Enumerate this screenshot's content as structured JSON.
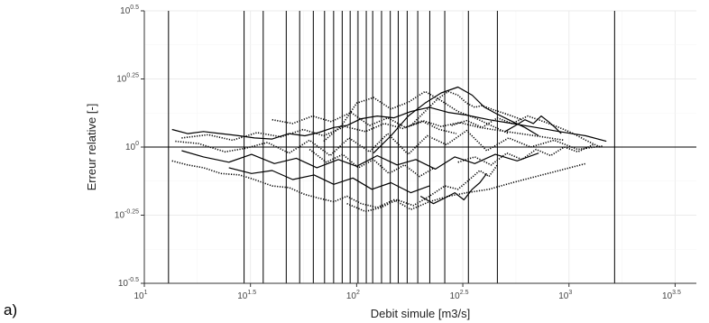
{
  "panel_label": "a)",
  "chart_data": {
    "type": "line",
    "title": "",
    "xlabel": "Debit simule [m3/s]",
    "ylabel": "Erreur relative [-]",
    "x_scale": "log10",
    "y_scale": "log10",
    "xlim": [
      10,
      3981
    ],
    "ylim": [
      0.3162,
      3.1623
    ],
    "x_ticks": [
      {
        "value": 10,
        "base": "10",
        "exp": "1"
      },
      {
        "value": 31.62,
        "base": "10",
        "exp": "1.5"
      },
      {
        "value": 100,
        "base": "10",
        "exp": "2"
      },
      {
        "value": 316.2,
        "base": "10",
        "exp": "2.5"
      },
      {
        "value": 1000,
        "base": "10",
        "exp": "3"
      },
      {
        "value": 3162,
        "base": "10",
        "exp": "3.5"
      }
    ],
    "y_ticks": [
      {
        "value": 3.1623,
        "base": "10",
        "exp": "0.5"
      },
      {
        "value": 1.7783,
        "base": "10",
        "exp": "0.25"
      },
      {
        "value": 1,
        "base": "10",
        "exp": "0"
      },
      {
        "value": 0.5623,
        "base": "10",
        "exp": "-0.25"
      },
      {
        "value": 0.3162,
        "base": "10",
        "exp": "-0.5"
      }
    ],
    "reference_line_y": 1,
    "vertical_lines_x": [
      13.0,
      29.5,
      36.3,
      46.6,
      53.9,
      62.5,
      70.6,
      77.9,
      85.5,
      93.2,
      101.5,
      111.0,
      119.0,
      131.0,
      144.0,
      157.0,
      173.0,
      194.0,
      221.0,
      260.0,
      336.0,
      460.0,
      1640.0
    ],
    "grid": true,
    "legend": "none",
    "series": [
      {
        "x": [
          13.5,
          16,
          19,
          23,
          28,
          33,
          40,
          48,
          57,
          66,
          78,
          90,
          105,
          125,
          150,
          180,
          220,
          270,
          330,
          420,
          540,
          700,
          900,
          1200,
          1500
        ],
        "y": [
          1.16,
          1.12,
          1.14,
          1.12,
          1.1,
          1.08,
          1.07,
          1.12,
          1.1,
          1.13,
          1.18,
          1.2,
          1.27,
          1.3,
          1.28,
          1.35,
          1.4,
          1.34,
          1.31,
          1.26,
          1.22,
          1.18,
          1.14,
          1.1,
          1.05
        ]
      },
      {
        "x": [
          13.5,
          16,
          19,
          23,
          28,
          33,
          40,
          48,
          57,
          66,
          78,
          90,
          105,
          125,
          150,
          180,
          220,
          270,
          330,
          420,
          540,
          700,
          900,
          1200
        ],
        "y": [
          0.89,
          0.86,
          0.84,
          0.8,
          0.79,
          0.76,
          0.72,
          0.71,
          0.67,
          0.65,
          0.63,
          0.66,
          0.62,
          0.6,
          0.64,
          0.59,
          0.63,
          0.66,
          0.68,
          0.7,
          0.74,
          0.78,
          0.82,
          0.87
        ]
      },
      {
        "x": [
          14,
          18,
          24,
          30,
          38,
          48,
          60,
          75,
          92,
          115,
          140,
          175,
          215,
          265,
          330,
          410,
          520,
          660,
          850,
          1100,
          1450
        ],
        "y": [
          1.05,
          1.03,
          0.96,
          0.99,
          1.04,
          0.95,
          1.06,
          0.93,
          1.08,
          0.96,
          1.12,
          0.94,
          1.1,
          1.02,
          1.15,
          0.97,
          1.08,
          1.0,
          1.06,
          0.98,
          1.01
        ]
      },
      {
        "x": [
          15,
          19,
          25,
          32,
          41,
          52,
          65,
          82,
          100,
          125,
          155,
          190,
          235,
          290,
          360,
          450,
          570,
          720
        ],
        "y": [
          0.97,
          0.92,
          0.88,
          0.94,
          0.87,
          0.91,
          0.84,
          0.9,
          0.85,
          0.93,
          0.86,
          0.9,
          0.83,
          0.92,
          0.87,
          0.94,
          0.89,
          0.95
        ]
      },
      {
        "x": [
          15,
          20,
          26,
          34,
          44,
          56,
          70,
          88,
          110,
          135,
          165,
          205,
          250,
          305,
          380,
          470,
          590,
          750,
          950
        ],
        "y": [
          1.08,
          1.11,
          1.06,
          1.13,
          1.09,
          1.16,
          1.1,
          1.19,
          1.14,
          1.22,
          1.17,
          1.25,
          1.19,
          1.23,
          1.18,
          1.15,
          1.12,
          1.09,
          1.06
        ]
      },
      {
        "x": [
          70,
          85,
          100,
          120,
          145,
          175,
          210,
          250,
          300,
          360,
          430,
          520
        ],
        "y": [
          1.05,
          1.2,
          1.45,
          1.52,
          1.38,
          1.46,
          1.6,
          1.48,
          1.35,
          1.28,
          1.2,
          1.12
        ]
      },
      {
        "x": [
          120,
          145,
          175,
          210,
          250,
          300,
          350,
          400,
          460,
          530,
          620,
          720
        ],
        "y": [
          0.95,
          1.1,
          1.3,
          1.45,
          1.58,
          1.66,
          1.55,
          1.4,
          1.32,
          1.25,
          1.18,
          1.1
        ]
      },
      {
        "x": [
          180,
          210,
          240,
          270,
          300,
          330,
          360,
          390,
          430,
          480,
          540,
          600
        ],
        "y": [
          1.2,
          1.35,
          1.5,
          1.6,
          1.55,
          1.45,
          1.4,
          1.42,
          1.38,
          1.34,
          1.3,
          1.26
        ]
      },
      {
        "x": [
          90,
          110,
          130,
          155,
          185,
          220,
          260,
          300,
          340,
          380,
          420,
          460
        ],
        "y": [
          0.62,
          0.58,
          0.6,
          0.64,
          0.61,
          0.66,
          0.72,
          0.7,
          0.76,
          0.82,
          0.78,
          0.86
        ]
      },
      {
        "x": [
          200,
          230,
          260,
          290,
          320,
          350,
          380,
          410
        ],
        "y": [
          0.66,
          0.62,
          0.65,
          0.68,
          0.64,
          0.7,
          0.74,
          0.8
        ]
      },
      {
        "x": [
          280,
          330,
          390,
          460,
          540,
          640,
          760,
          900,
          1050,
          1200,
          1400
        ],
        "y": [
          1.2,
          1.25,
          1.18,
          1.28,
          1.22,
          1.3,
          1.24,
          1.18,
          1.12,
          1.06,
          1.0
        ]
      },
      {
        "x": [
          40,
          50,
          62,
          76,
          94,
          115,
          140,
          170,
          205,
          245,
          295
        ],
        "y": [
          1.26,
          1.22,
          1.3,
          1.24,
          1.34,
          1.2,
          1.28,
          1.18,
          1.24,
          1.16,
          1.12
        ]
      },
      {
        "x": [
          25,
          32,
          40,
          50,
          63,
          78,
          96,
          118,
          145,
          180,
          220
        ],
        "y": [
          0.84,
          0.8,
          0.82,
          0.76,
          0.79,
          0.73,
          0.77,
          0.7,
          0.74,
          0.68,
          0.72
        ]
      },
      {
        "x": [
          300,
          360,
          430,
          510,
          600,
          700,
          820,
          950,
          1100,
          1300
        ],
        "y": [
          0.88,
          0.92,
          0.86,
          0.95,
          0.9,
          0.98,
          0.93,
          1.0,
          0.96,
          1.02
        ]
      },
      {
        "x": [
          60,
          72,
          86,
          102,
          120,
          142,
          168,
          198,
          232
        ],
        "y": [
          0.98,
          0.88,
          0.94,
          0.84,
          0.9,
          0.8,
          0.86,
          0.78,
          0.84
        ]
      },
      {
        "x": [
          500,
          560,
          620,
          680,
          740,
          800,
          860,
          920
        ],
        "y": [
          1.14,
          1.2,
          1.26,
          1.22,
          1.3,
          1.24,
          1.18,
          1.12
        ]
      }
    ]
  }
}
